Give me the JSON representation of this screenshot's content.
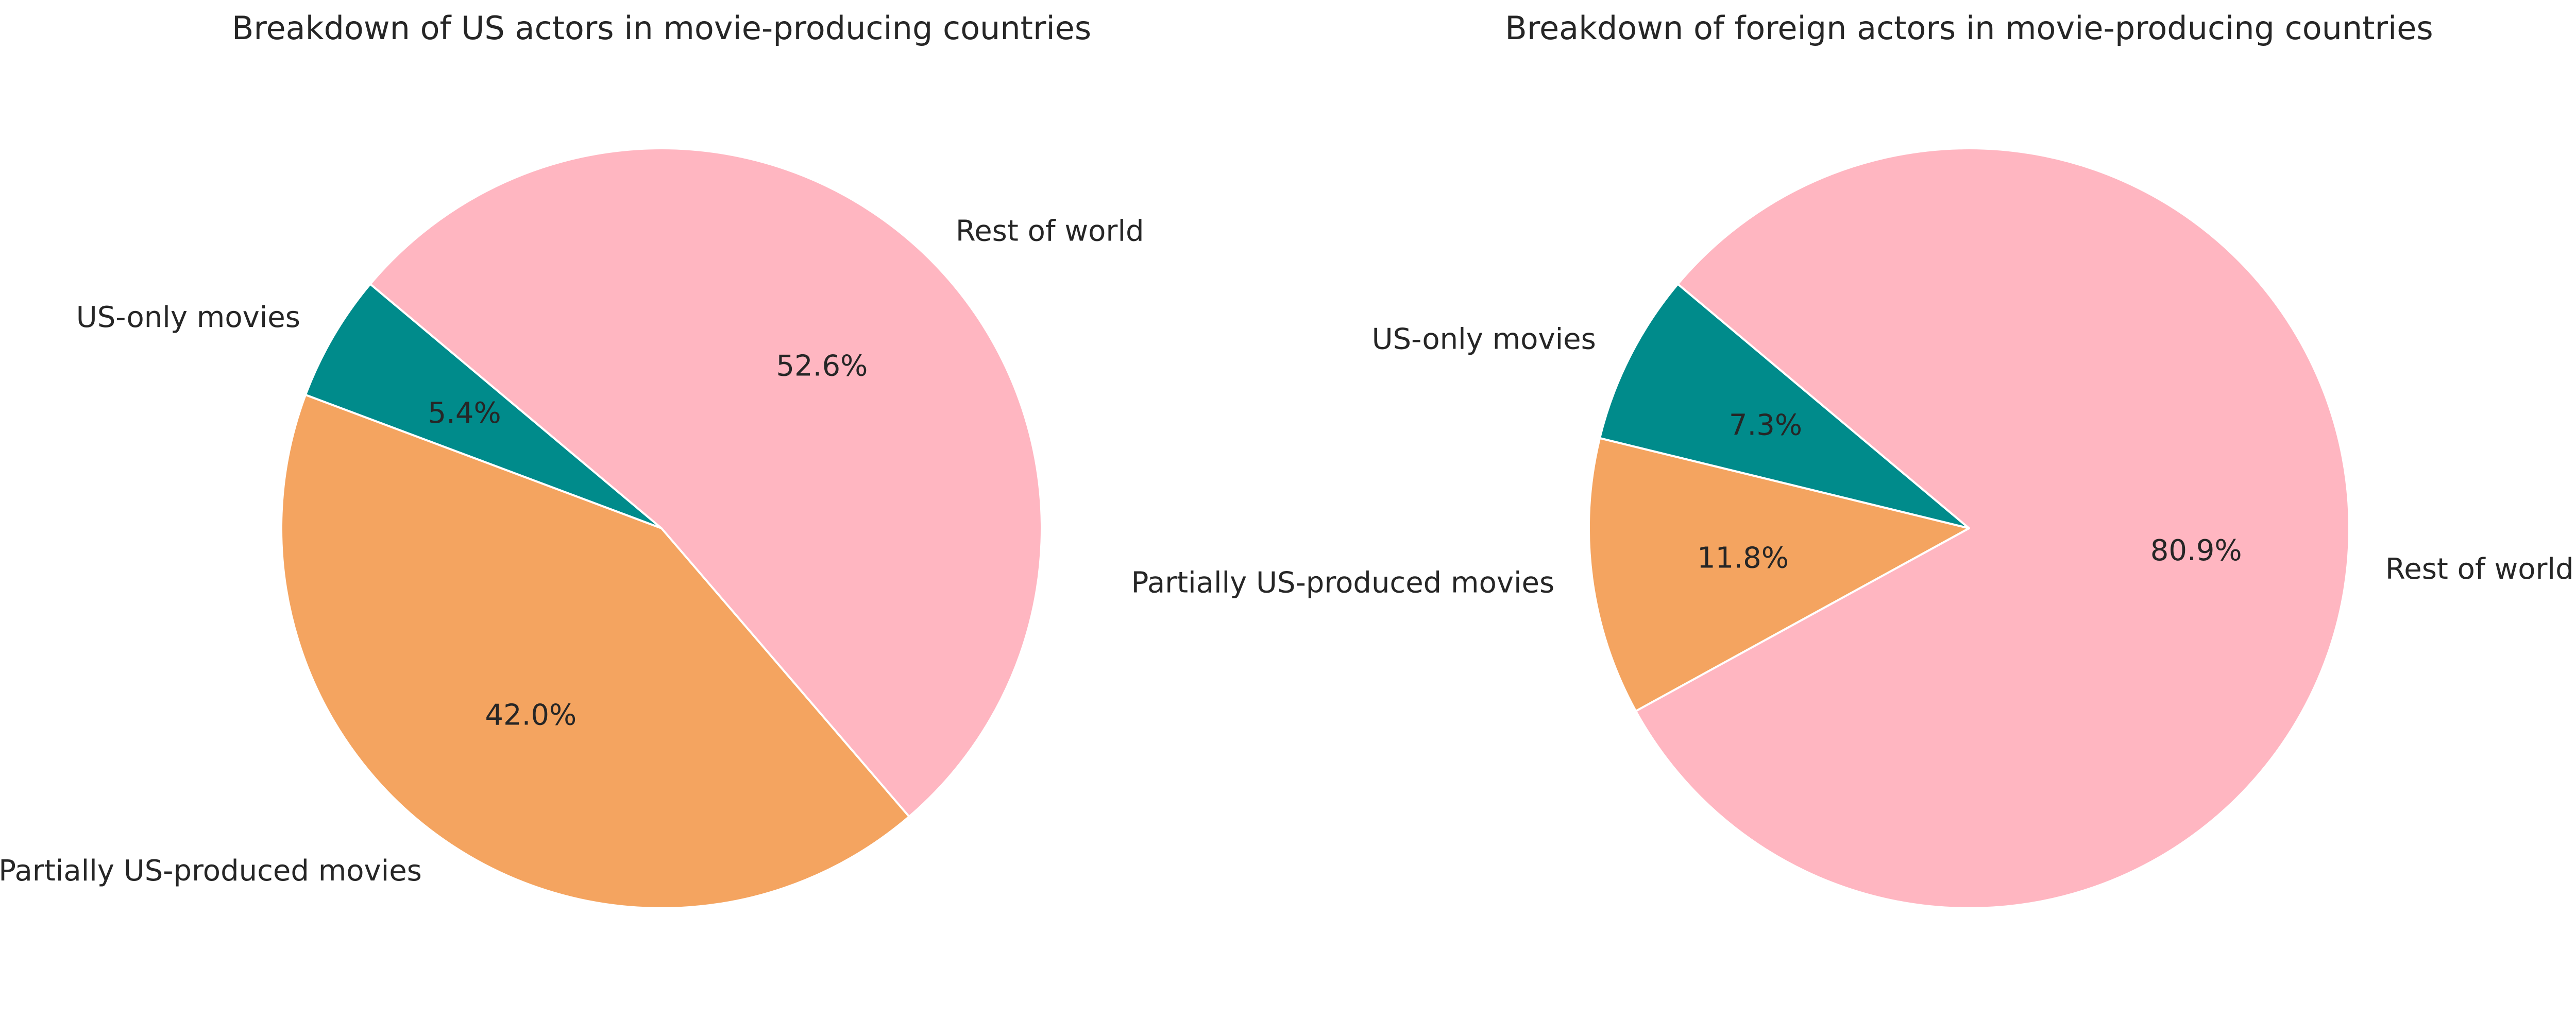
{
  "chart_data": [
    {
      "type": "pie",
      "title": "Breakdown of US actors in movie-producing countries",
      "categories": [
        "US-only movies",
        "Partially US-produced movies",
        "Rest of world"
      ],
      "values": [
        5.4,
        42.0,
        52.6
      ],
      "value_labels": [
        "5.4%",
        "42.0%",
        "52.6%"
      ],
      "colors": [
        "#008b8b",
        "#f4a460",
        "#ffb6c1"
      ],
      "start_angle_deg": 140,
      "direction": "counterclockwise"
    },
    {
      "type": "pie",
      "title": "Breakdown of foreign actors in movie-producing countries",
      "categories": [
        "US-only movies",
        "Partially US-produced movies",
        "Rest of world"
      ],
      "values": [
        7.3,
        11.8,
        80.9
      ],
      "value_labels": [
        "7.3%",
        "11.8%",
        "80.9%"
      ],
      "colors": [
        "#008b8b",
        "#f4a460",
        "#ffb6c1"
      ],
      "start_angle_deg": 140,
      "direction": "counterclockwise"
    }
  ]
}
